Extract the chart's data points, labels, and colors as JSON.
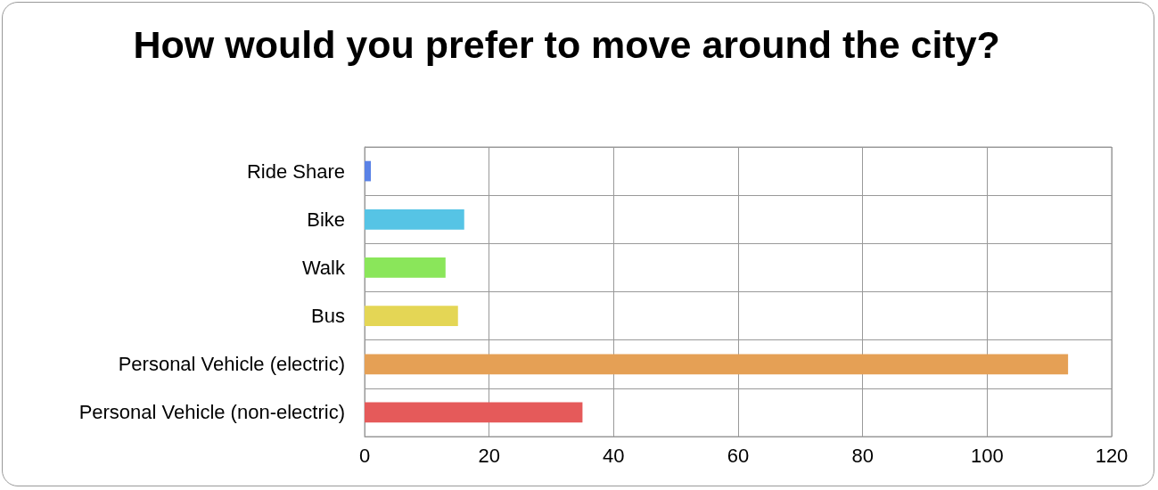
{
  "chart_data": {
    "type": "bar",
    "orientation": "horizontal",
    "title": "How would you prefer to move around the city?",
    "categories": [
      "Ride Share",
      "Bike",
      "Walk",
      "Bus",
      "Personal Vehicle (electric)",
      "Personal Vehicle (non-electric)"
    ],
    "values": [
      1,
      16,
      13,
      15,
      113,
      35
    ],
    "colors": [
      "#5a82e6",
      "#56c4e5",
      "#8ae65a",
      "#e4d655",
      "#e5a055",
      "#e55a5a"
    ],
    "xlim": [
      0,
      120
    ],
    "xticks": [
      0,
      20,
      40,
      60,
      80,
      100,
      120
    ],
    "grid": true
  }
}
